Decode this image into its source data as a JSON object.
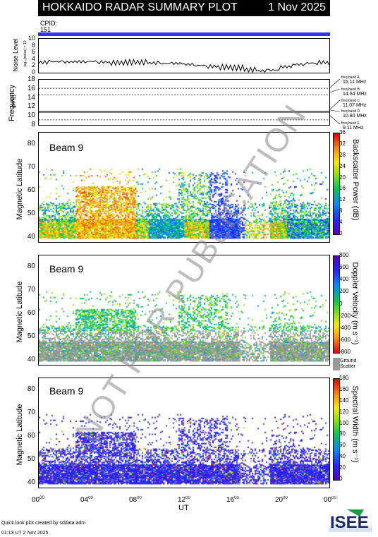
{
  "header": {
    "title": "HOKKAIDO RADAR SUMMARY PLOT",
    "date": "1 Nov 2025"
  },
  "cpid": {
    "label": "CPID:",
    "value": "151"
  },
  "noise_panel": {
    "ylabel": "Noise Level",
    "ylabel_small": "log₁₀(noise) × 10",
    "yticks": [
      "10",
      "8",
      "6",
      "4",
      "2",
      "0"
    ]
  },
  "freq_panel": {
    "ylabel": "Frequency",
    "yunit": "(MHz)",
    "yticks": [
      "18",
      "16",
      "14",
      "12",
      "10",
      "8"
    ],
    "bands": [
      {
        "name": "freq band A",
        "value": "16.11 MHz"
      },
      {
        "name": "freq band B",
        "value": "14.64 MHz"
      },
      {
        "name": "freq band C",
        "value": "11.07 MHz"
      },
      {
        "name": "freq band D",
        "value": "10.80 MHz"
      },
      {
        "name": "freq band E",
        "value": "9.11 MHz"
      }
    ]
  },
  "panels": [
    {
      "beam": "Beam  9",
      "ylabel": "Magnetic Latitude",
      "cblabel": "Backscatter Power (dB)",
      "cbticks": [
        "36",
        "32",
        "28",
        "24",
        "20",
        "16",
        "12",
        "8",
        "4",
        "0"
      ]
    },
    {
      "beam": "Beam  9",
      "ylabel": "Magnetic Latitude",
      "cblabel": "Doppler Velocity (m s⁻¹)",
      "cbticks": [
        "800",
        "600",
        "400",
        "200",
        "0",
        "-200",
        "-400",
        "-600",
        "-800"
      ],
      "gs_label_1": "Ground",
      "gs_label_2": "Scatter"
    },
    {
      "beam": "Beam  9",
      "ylabel": "Magnetic Latitude",
      "cblabel": "Spectral Width (m s⁻¹)",
      "cbticks": [
        "180",
        "160",
        "140",
        "120",
        "100",
        "80",
        "60",
        "40",
        "20",
        "0"
      ]
    }
  ],
  "lat_ticks": [
    "80",
    "70",
    "60",
    "50",
    "40"
  ],
  "xaxis": {
    "label": "UT",
    "ticks": [
      "00",
      "04",
      "08",
      "12",
      "16",
      "20",
      "00"
    ],
    "tick_sup": "00"
  },
  "footer": {
    "credit": "Quick look plot created by sddata adm",
    "timestamp": "01:13 UT  2 Nov 2025",
    "logo": "ISEE"
  },
  "watermark": "NOT FOR PUBLICATION",
  "chart_data": [
    {
      "type": "line",
      "title": "Noise Level",
      "ylim": [
        0,
        10
      ],
      "x_range_ut": [
        0,
        24
      ],
      "x": [
        0,
        1,
        2,
        3,
        4,
        5,
        6,
        7,
        8,
        9,
        10,
        11,
        12,
        13,
        14,
        15,
        16,
        17,
        18,
        19,
        20,
        21,
        22,
        23,
        24
      ],
      "y": [
        2.8,
        3.0,
        2.9,
        3.0,
        3.1,
        2.9,
        2.7,
        2.8,
        2.8,
        2.6,
        2.4,
        2.5,
        2.2,
        1.9,
        1.6,
        1.4,
        1.2,
        0.6,
        0.3,
        0.5,
        1.5,
        2.2,
        2.6,
        2.8,
        2.9
      ]
    },
    {
      "type": "line",
      "title": "Frequency",
      "ylim": [
        8,
        18
      ],
      "x_range_ut": [
        0,
        24
      ],
      "series": [
        {
          "values_mhz": [
            16.11
          ]
        },
        {
          "values_mhz": [
            14.64
          ]
        },
        {
          "values_mhz": [
            11.07
          ]
        },
        {
          "values_mhz": [
            10.8
          ]
        },
        {
          "values_mhz": [
            9.11
          ]
        }
      ]
    },
    {
      "type": "heatmap",
      "title": "Backscatter Power (dB)",
      "ylim": [
        38,
        85
      ],
      "zlim": [
        0,
        36
      ],
      "x_range_ut": [
        0,
        24
      ]
    },
    {
      "type": "heatmap",
      "title": "Doppler Velocity",
      "ylim": [
        38,
        85
      ],
      "zlim": [
        -800,
        800
      ],
      "x_range_ut": [
        0,
        24
      ]
    },
    {
      "type": "heatmap",
      "title": "Spectral Width",
      "ylim": [
        38,
        85
      ],
      "zlim": [
        0,
        180
      ],
      "x_range_ut": [
        0,
        24
      ]
    }
  ]
}
